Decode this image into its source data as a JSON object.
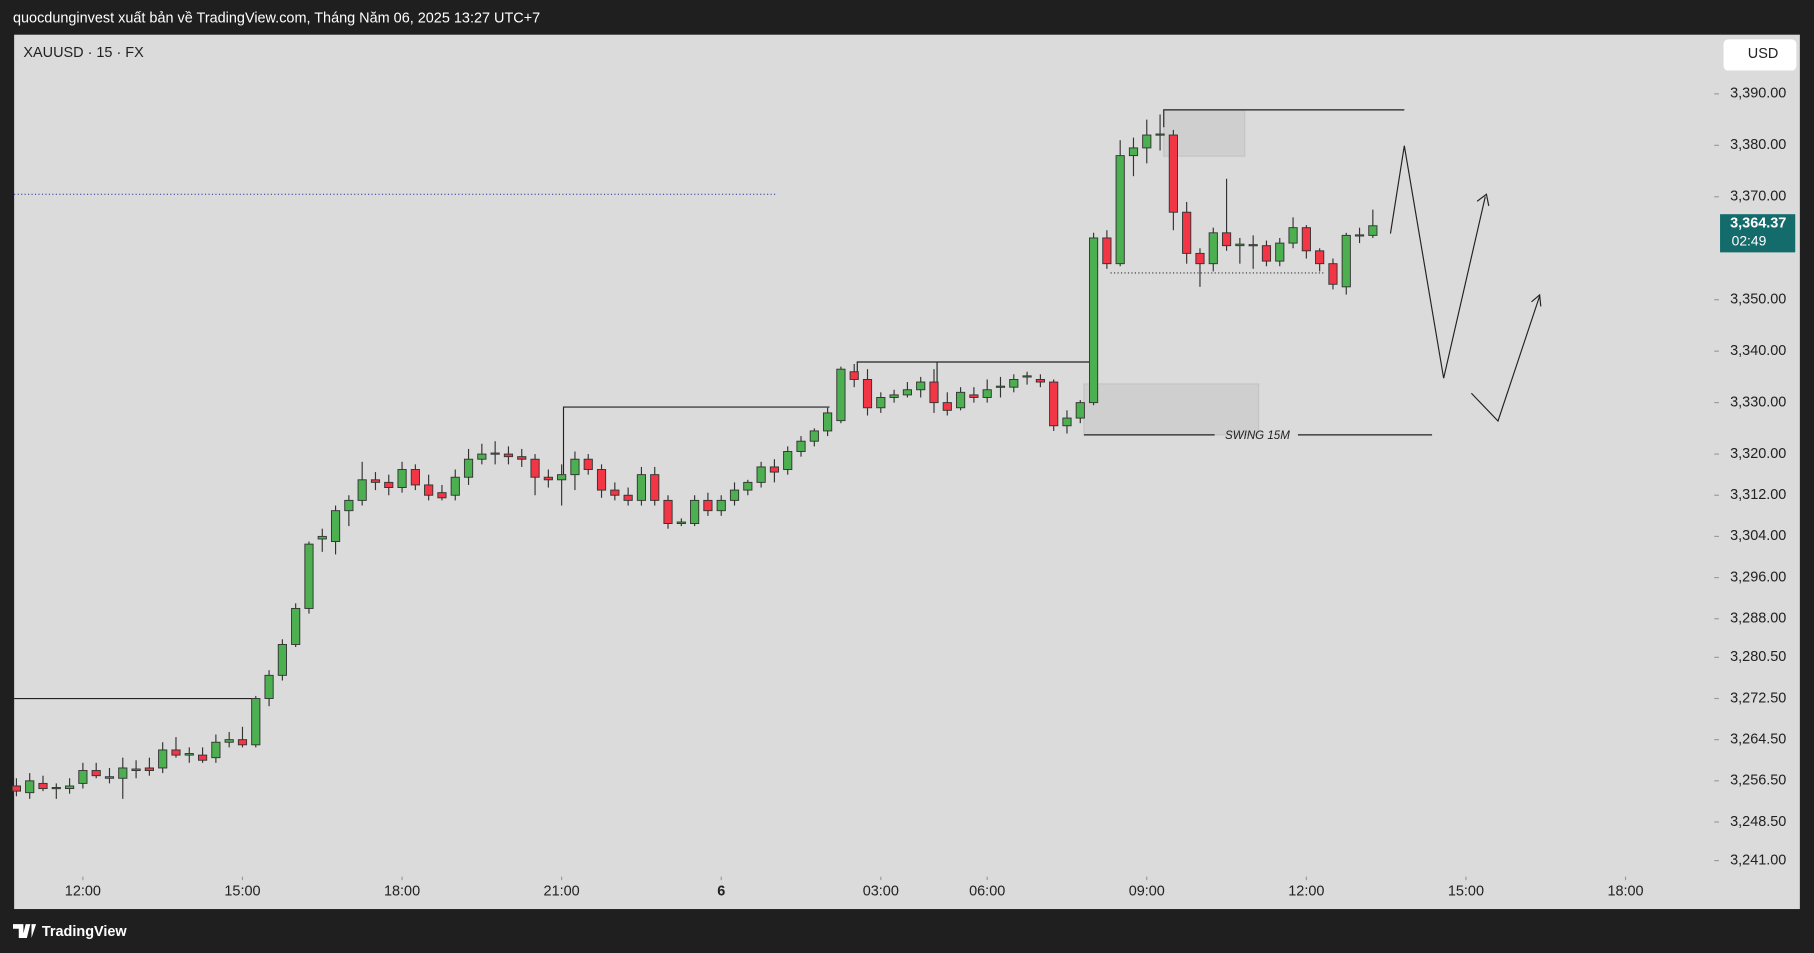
{
  "chart_data": {
    "type": "candlestick",
    "header": "quocdunginvest xuất bản về TradingView.com, Tháng Năm 06, 2025 13:27 UTC+7",
    "symbol": "XAUUSD · 15 · FX",
    "currency": "USD",
    "last_price_label": "3,364.37",
    "countdown": "02:49",
    "annotation": "SWING 15M",
    "footer": "TradingView",
    "up_color": "#4caf50",
    "down_color": "#f23645",
    "ylim": [
      3238.1,
      3401.5
    ],
    "xlim": [
      -0.17,
      127.5
    ],
    "yticks": [
      {
        "value": 3390,
        "label": "3,390.00"
      },
      {
        "value": 3380,
        "label": "3,380.00"
      },
      {
        "value": 3370,
        "label": "3,370.00"
      },
      {
        "value": 3350,
        "label": "3,350.00"
      },
      {
        "value": 3340,
        "label": "3,340.00"
      },
      {
        "value": 3330,
        "label": "3,330.00"
      },
      {
        "value": 3320,
        "label": "3,320.00"
      },
      {
        "value": 3312,
        "label": "3,312.00"
      },
      {
        "value": 3304,
        "label": "3,304.00"
      },
      {
        "value": 3296,
        "label": "3,296.00"
      },
      {
        "value": 3288,
        "label": "3,288.00"
      },
      {
        "value": 3280.5,
        "label": "3,280.50"
      },
      {
        "value": 3272.5,
        "label": "3,272.50"
      },
      {
        "value": 3264.5,
        "label": "3,264.50"
      },
      {
        "value": 3256.5,
        "label": "3,256.50"
      },
      {
        "value": 3248.5,
        "label": "3,248.50"
      },
      {
        "value": 3241,
        "label": "3,241.00"
      }
    ],
    "xticks": [
      {
        "value": 5,
        "label": "12:00"
      },
      {
        "value": 17,
        "label": "15:00"
      },
      {
        "value": 29,
        "label": "18:00"
      },
      {
        "value": 41,
        "label": "21:00"
      },
      {
        "value": 53,
        "label": "6"
      },
      {
        "value": 65,
        "label": "03:00"
      },
      {
        "value": 73,
        "label": "06:00"
      },
      {
        "value": 85,
        "label": "09:00"
      },
      {
        "value": 97,
        "label": "12:00"
      },
      {
        "value": 109,
        "label": "15:00"
      },
      {
        "value": 121,
        "label": "18:00"
      }
    ],
    "ohlc": [
      [
        3255.5,
        3257,
        3253.5,
        3254.5
      ],
      [
        3254.2,
        3258,
        3253,
        3256.5
      ],
      [
        3256,
        3257.5,
        3254.5,
        3255
      ],
      [
        3255,
        3256,
        3253,
        3255.2
      ],
      [
        3255,
        3257,
        3254,
        3255.5
      ],
      [
        3256,
        3260,
        3255,
        3258.5
      ],
      [
        3258.5,
        3260,
        3257,
        3257.5
      ],
      [
        3257,
        3259,
        3256,
        3257.3
      ],
      [
        3257,
        3261,
        3253,
        3259
      ],
      [
        3258.5,
        3260.5,
        3257,
        3258.8
      ],
      [
        3259,
        3261,
        3257.5,
        3258.5
      ],
      [
        3259,
        3264,
        3258,
        3262.5
      ],
      [
        3262.5,
        3265,
        3261,
        3261.5
      ],
      [
        3261.5,
        3263,
        3260,
        3261.8
      ],
      [
        3261.5,
        3263,
        3260,
        3260.5
      ],
      [
        3261,
        3265.5,
        3260,
        3264
      ],
      [
        3264,
        3266,
        3263,
        3264.5
      ],
      [
        3264.5,
        3267,
        3263,
        3263.5
      ],
      [
        3263.5,
        3273,
        3263,
        3272.5
      ],
      [
        3272.5,
        3278,
        3271,
        3277
      ],
      [
        3277,
        3284,
        3276,
        3283
      ],
      [
        3283,
        3291,
        3282.5,
        3290
      ],
      [
        3290,
        3303,
        3289,
        3302.5
      ],
      [
        3303.5,
        3305.5,
        3301,
        3304
      ],
      [
        3303,
        3310,
        3300.5,
        3309
      ],
      [
        3309,
        3312,
        3306,
        3311
      ],
      [
        3311,
        3318.5,
        3310,
        3315
      ],
      [
        3315,
        3316.5,
        3313,
        3314.5
      ],
      [
        3314.5,
        3316,
        3312,
        3313.5
      ],
      [
        3313.5,
        3318.5,
        3312.5,
        3317
      ],
      [
        3317,
        3318,
        3313,
        3314
      ],
      [
        3314,
        3316,
        3311,
        3312
      ],
      [
        3312.5,
        3314,
        3311,
        3311.5
      ],
      [
        3312,
        3317,
        3311,
        3315.5
      ],
      [
        3315.5,
        3321,
        3314,
        3319
      ],
      [
        3319,
        3322,
        3318,
        3320
      ],
      [
        3320,
        3322.5,
        3318,
        3320.2
      ],
      [
        3320,
        3321.5,
        3318,
        3319.5
      ],
      [
        3319.5,
        3321,
        3317.5,
        3319
      ],
      [
        3319,
        3320,
        3312,
        3315.5
      ],
      [
        3315.5,
        3317,
        3313.5,
        3315
      ],
      [
        3315,
        3318,
        3310,
        3316
      ],
      [
        3316,
        3320.5,
        3313,
        3319
      ],
      [
        3319,
        3320,
        3316,
        3317
      ],
      [
        3317,
        3318,
        3311.5,
        3313
      ],
      [
        3313,
        3314.5,
        3311,
        3312
      ],
      [
        3312,
        3313.5,
        3310,
        3311
      ],
      [
        3311,
        3317.5,
        3310,
        3316
      ],
      [
        3316,
        3317.5,
        3310,
        3311
      ],
      [
        3311,
        3312,
        3305.5,
        3306.5
      ],
      [
        3306.5,
        3307.5,
        3306,
        3306.8
      ],
      [
        3306.5,
        3312,
        3306,
        3311
      ],
      [
        3311,
        3312.5,
        3308,
        3309
      ],
      [
        3309,
        3312,
        3308,
        3311
      ],
      [
        3311,
        3314.5,
        3310,
        3313
      ],
      [
        3313,
        3315,
        3312,
        3314.5
      ],
      [
        3314.5,
        3318.5,
        3313.5,
        3317.5
      ],
      [
        3317.5,
        3319,
        3314.5,
        3316.5
      ],
      [
        3317,
        3321.5,
        3316,
        3320.5
      ],
      [
        3320.5,
        3323.5,
        3319.5,
        3322.5
      ],
      [
        3322.5,
        3325,
        3321.5,
        3324.5
      ],
      [
        3324.5,
        3329,
        3323.5,
        3328
      ],
      [
        3326.5,
        3337,
        3326,
        3336.5
      ],
      [
        3336,
        3337.5,
        3333,
        3334.5
      ],
      [
        3334.5,
        3336.5,
        3327.5,
        3329
      ],
      [
        3329,
        3332,
        3328,
        3331
      ],
      [
        3331,
        3332.5,
        3330,
        3331.5
      ],
      [
        3331.5,
        3334,
        3331,
        3332.5
      ],
      [
        3332.5,
        3335,
        3331,
        3334
      ],
      [
        3334,
        3336.5,
        3328,
        3330
      ],
      [
        3330,
        3332,
        3327.5,
        3328.5
      ],
      [
        3329,
        3333,
        3328.5,
        3332
      ],
      [
        3331.5,
        3333,
        3330,
        3331
      ],
      [
        3331,
        3334.5,
        3330,
        3332.5
      ],
      [
        3333,
        3335,
        3331,
        3333.2
      ],
      [
        3333,
        3335.5,
        3332,
        3334.5
      ],
      [
        3335,
        3336,
        3333.5,
        3335.2
      ],
      [
        3334.5,
        3335.5,
        3333,
        3334
      ],
      [
        3334,
        3334.5,
        3324.5,
        3325.5
      ],
      [
        3325.5,
        3328.5,
        3324,
        3327
      ],
      [
        3327,
        3330.5,
        3326,
        3330
      ],
      [
        3330,
        3363,
        3329.5,
        3362
      ],
      [
        3362,
        3363.5,
        3356,
        3357
      ],
      [
        3357,
        3381,
        3356.5,
        3378
      ],
      [
        3378,
        3381.5,
        3374,
        3379.5
      ],
      [
        3379.5,
        3385,
        3376.5,
        3382
      ],
      [
        3382,
        3386,
        3379,
        3382.2
      ],
      [
        3382,
        3383,
        3363.5,
        3367
      ],
      [
        3367,
        3369,
        3357,
        3359
      ],
      [
        3359,
        3360,
        3352.5,
        3357
      ],
      [
        3357,
        3364,
        3355.5,
        3363
      ],
      [
        3363,
        3373.5,
        3359.5,
        3360.5
      ],
      [
        3360.5,
        3362,
        3357,
        3360.8
      ],
      [
        3360.5,
        3362.5,
        3356,
        3360.7
      ],
      [
        3360.5,
        3361.5,
        3356.5,
        3357.5
      ],
      [
        3357.5,
        3362,
        3356.5,
        3361
      ],
      [
        3361,
        3366,
        3360,
        3364
      ],
      [
        3364,
        3364.5,
        3358,
        3359.5
      ],
      [
        3359.5,
        3360,
        3355.5,
        3357
      ],
      [
        3357,
        3358,
        3352,
        3353
      ],
      [
        3352.5,
        3363,
        3351,
        3362.5
      ],
      [
        3362.5,
        3364,
        3361,
        3362.6
      ],
      [
        3362.5,
        3367.5,
        3362,
        3364.37
      ]
    ]
  }
}
